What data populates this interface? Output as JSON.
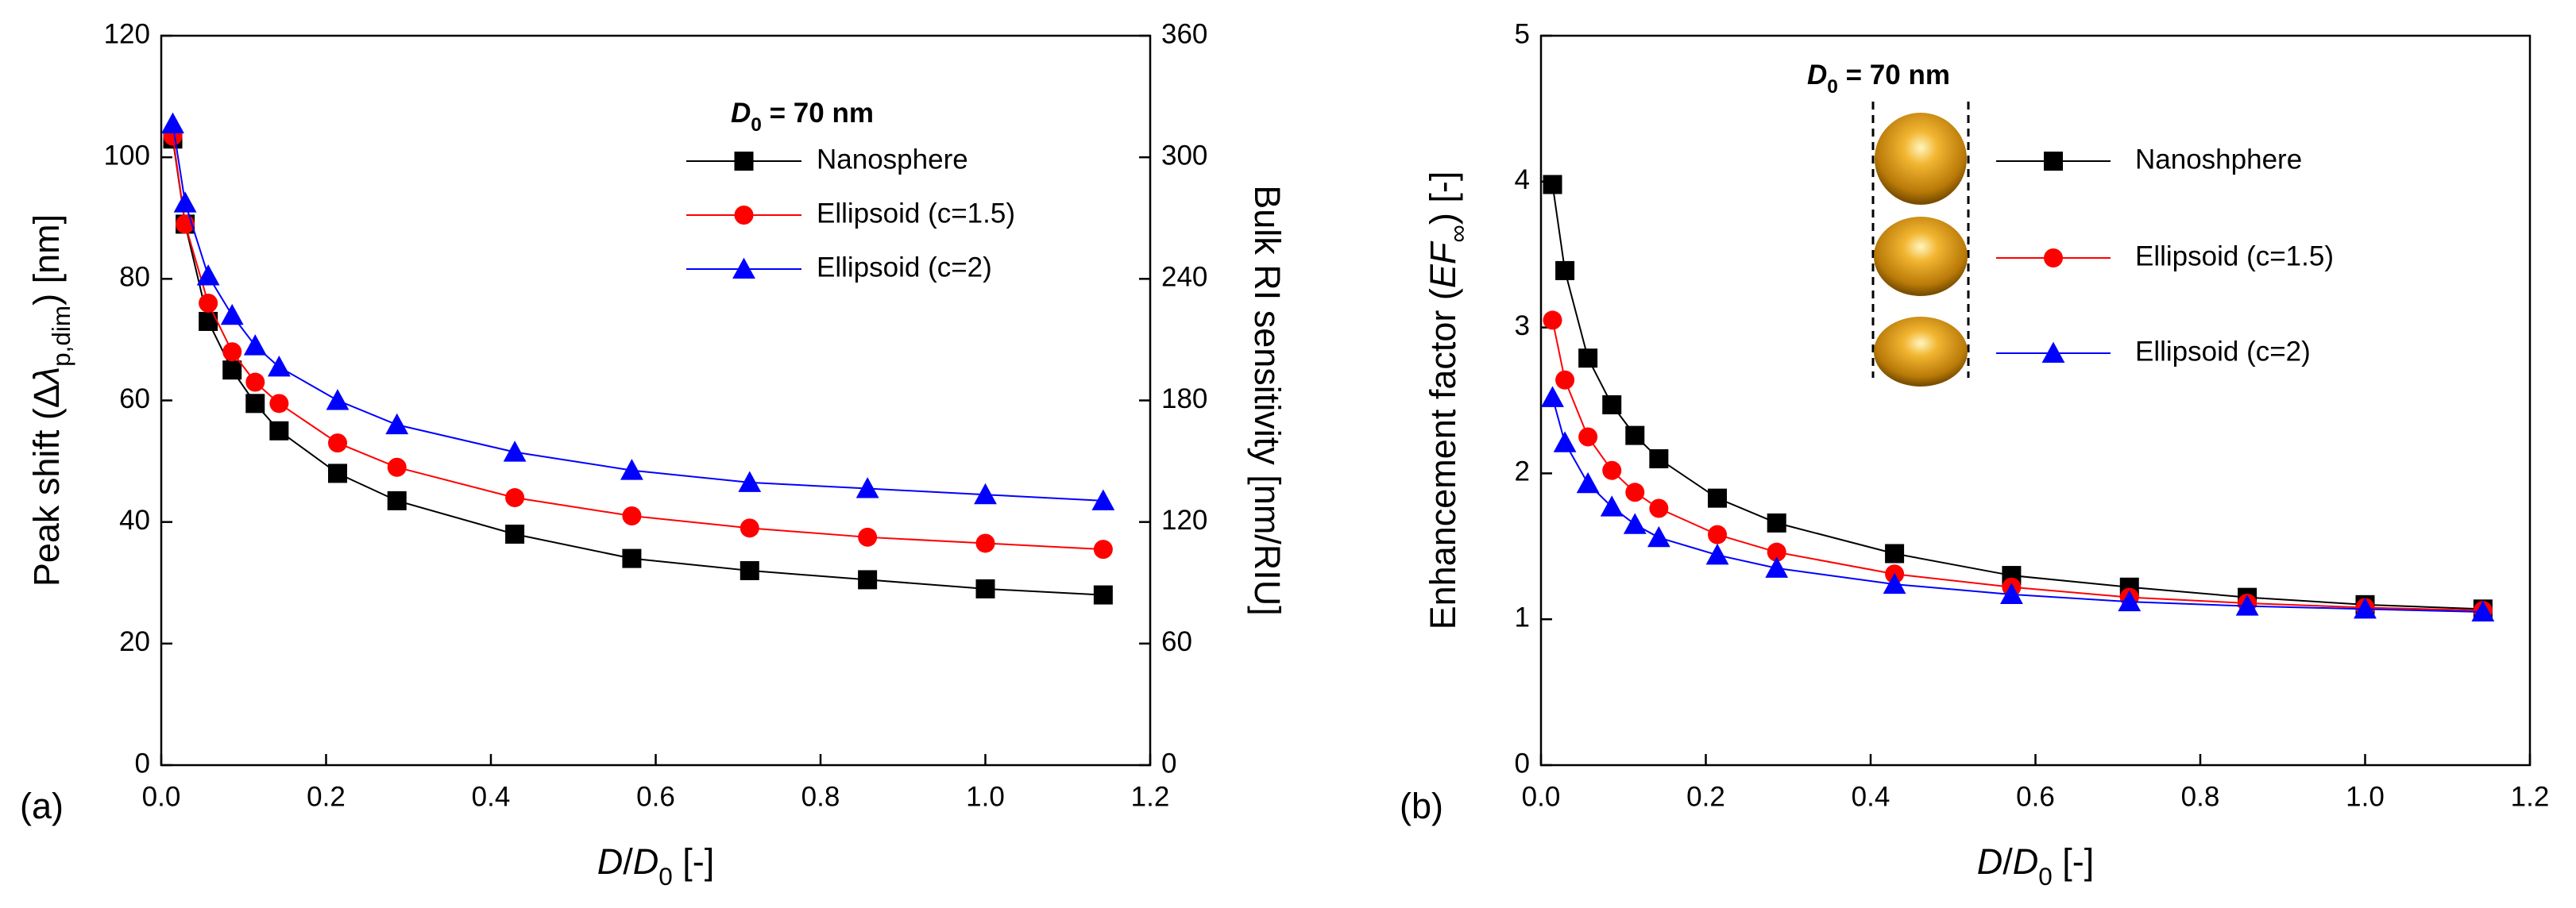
{
  "chart_data": [
    {
      "type": "line",
      "panel_label": "(a)",
      "x_label": [
        "D",
        "/",
        "D",
        "0",
        " [-]"
      ],
      "y_label": [
        "Peak shift (Δ",
        "λ",
        "p,dim",
        ") [nm]"
      ],
      "y2_label": "Bulk RI sensitivity [nm/RIU]",
      "legend_title": [
        "D",
        "0",
        " = 70 nm"
      ],
      "x": [
        0.014,
        0.029,
        0.057,
        0.086,
        0.114,
        0.143,
        0.214,
        0.286,
        0.429,
        0.571,
        0.714,
        0.857,
        1.0,
        1.143
      ],
      "xlim": [
        0,
        1.2
      ],
      "xticks": [
        {
          "value": 0,
          "label": "0.0"
        },
        0.2,
        0.4,
        0.6,
        0.8,
        {
          "value": 1,
          "label": "1.0"
        },
        1.2
      ],
      "ylim": [
        0,
        120
      ],
      "yticks": [
        0,
        20,
        40,
        60,
        80,
        100,
        120
      ],
      "y2lim": [
        0,
        360
      ],
      "y2ticks": [
        0,
        60,
        120,
        180,
        240,
        300,
        360
      ],
      "series": [
        {
          "name": "Nanosphere",
          "color": "#000000",
          "marker": "square",
          "values": [
            103,
            89,
            73,
            65,
            59.5,
            55,
            48,
            43.5,
            38,
            34,
            32,
            30.5,
            29,
            28
          ]
        },
        {
          "name": "Ellipsoid (c=1.5)",
          "color": "#ff0000",
          "marker": "circle",
          "values": [
            103.5,
            89,
            76,
            68,
            63,
            59.5,
            53,
            49,
            44,
            41,
            39,
            37.5,
            36.5,
            35.5
          ]
        },
        {
          "name": "Ellipsoid (c=2)",
          "color": "#0000ff",
          "marker": "triangle",
          "values": [
            105.5,
            92.5,
            80.5,
            74,
            69,
            65.5,
            60,
            56,
            51.5,
            48.5,
            46.5,
            45.5,
            44.5,
            43.5
          ]
        }
      ]
    },
    {
      "type": "line",
      "panel_label": "(b)",
      "x_label": [
        "D",
        "/",
        "D",
        "0",
        " [-]"
      ],
      "y_label": [
        "Enhancement factor (",
        "EF",
        "∞",
        ") [-]"
      ],
      "legend_title": [
        "D",
        "0",
        " = 70 nm"
      ],
      "x": [
        0.014,
        0.029,
        0.057,
        0.086,
        0.114,
        0.143,
        0.214,
        0.286,
        0.429,
        0.571,
        0.714,
        0.857,
        1.0,
        1.143
      ],
      "xlim": [
        0,
        1.2
      ],
      "xticks": [
        {
          "value": 0,
          "label": "0.0"
        },
        0.2,
        0.4,
        0.6,
        0.8,
        {
          "value": 1,
          "label": "1.0"
        },
        1.2
      ],
      "ylim": [
        0,
        5
      ],
      "yticks": [
        0,
        1,
        2,
        3,
        4,
        5
      ],
      "series": [
        {
          "name": "Nanoshphere",
          "color": "#000000",
          "marker": "square",
          "values": [
            3.98,
            3.39,
            2.79,
            2.47,
            2.26,
            2.1,
            1.83,
            1.66,
            1.45,
            1.3,
            1.22,
            1.15,
            1.1,
            1.07
          ]
        },
        {
          "name": "Ellipsoid (c=1.5)",
          "color": "#ff0000",
          "marker": "circle",
          "values": [
            3.05,
            2.64,
            2.25,
            2.02,
            1.87,
            1.76,
            1.58,
            1.46,
            1.31,
            1.22,
            1.15,
            1.11,
            1.08,
            1.06
          ]
        },
        {
          "name": "Ellipsoid (c=2)",
          "color": "#0000ff",
          "marker": "triangle",
          "values": [
            2.52,
            2.21,
            1.93,
            1.77,
            1.65,
            1.56,
            1.44,
            1.35,
            1.24,
            1.17,
            1.12,
            1.09,
            1.07,
            1.05
          ]
        }
      ]
    }
  ]
}
